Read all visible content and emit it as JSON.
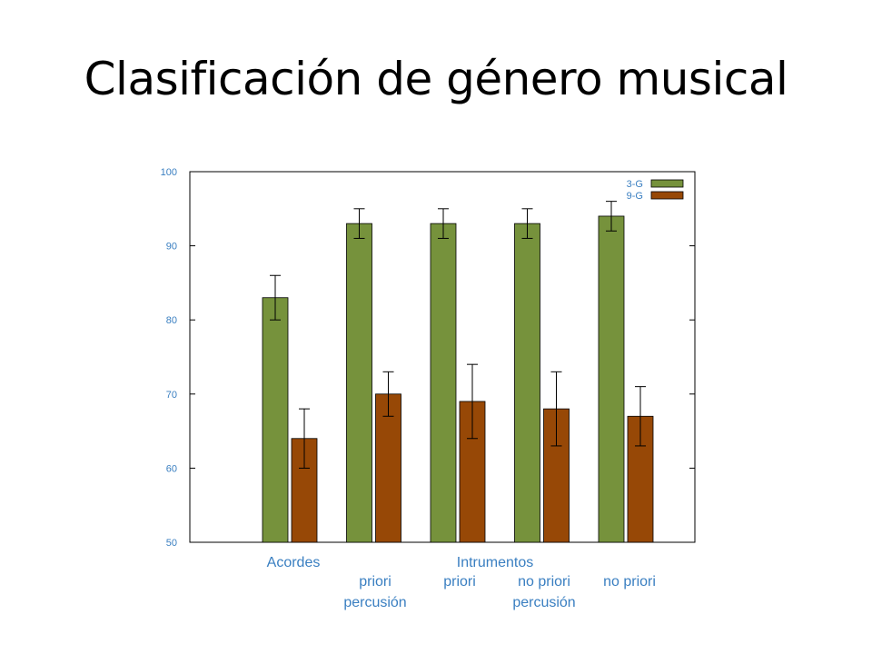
{
  "slide": {
    "title": "Clasificación de género musical"
  },
  "chart_data": {
    "type": "bar",
    "ylim": [
      50,
      100
    ],
    "yticks": [
      50,
      60,
      70,
      80,
      90,
      100
    ],
    "grid": false,
    "legend_position": "top-right",
    "groups": [
      {
        "label_lines": [
          "Acordes"
        ]
      },
      {
        "label_lines": [
          "priori",
          "percusión"
        ]
      },
      {
        "label_lines": [
          "Intrumentos",
          "priori"
        ]
      },
      {
        "label_lines": [
          "no priori",
          "percusión"
        ]
      },
      {
        "label_lines": [
          "no priori"
        ]
      }
    ],
    "series": [
      {
        "name": "3-G",
        "color": "#76923c",
        "values": [
          83,
          93,
          93,
          93,
          94
        ],
        "err_low": [
          80,
          91,
          91,
          91,
          92
        ],
        "err_high": [
          86,
          95,
          95,
          95,
          96
        ]
      },
      {
        "name": "9-G",
        "color": "#974806",
        "values": [
          64,
          70,
          69,
          68,
          67
        ],
        "err_low": [
          60,
          67,
          64,
          63,
          63
        ],
        "err_high": [
          68,
          73,
          74,
          73,
          71
        ]
      }
    ]
  }
}
